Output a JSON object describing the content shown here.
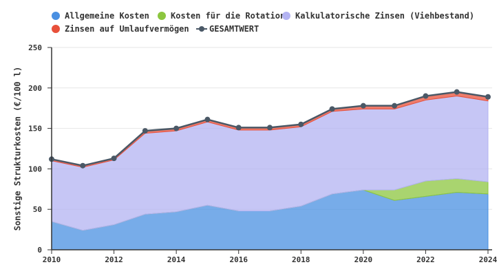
{
  "chart_data": {
    "type": "area",
    "stacked": true,
    "y_label": "Sonstige Strukturkosten (€/100 l)",
    "x": [
      2010,
      2011,
      2012,
      2013,
      2014,
      2015,
      2016,
      2017,
      2018,
      2019,
      2020,
      2021,
      2022,
      2023,
      2024
    ],
    "xlim": [
      2010,
      2024
    ],
    "xticks": [
      2010,
      2012,
      2014,
      2016,
      2018,
      2020,
      2022,
      2024
    ],
    "ylim": [
      0,
      250
    ],
    "yticks": [
      0,
      50,
      100,
      150,
      200,
      250
    ],
    "grid": true,
    "series": [
      {
        "name": "Allgemeine Kosten",
        "color": "#4a90e2",
        "values": [
          35,
          24,
          31,
          44,
          47,
          55,
          48,
          48,
          54,
          69,
          74,
          61,
          66,
          71,
          69
        ]
      },
      {
        "name": "Kosten für die Rotation",
        "color": "#8cc63f",
        "values": [
          0,
          0,
          0,
          0,
          0,
          0,
          0,
          0,
          0,
          0,
          0,
          13,
          19,
          17,
          15
        ]
      },
      {
        "name": "Kalkulatorische Zinsen (Viehbestand)",
        "color": "#b3b3f2",
        "values": [
          75,
          78,
          80,
          100,
          100,
          103,
          100,
          100,
          98,
          102,
          100,
          100,
          100,
          102,
          100
        ]
      },
      {
        "name": "Zinsen auf Umlaufvermögen",
        "color": "#e8503a",
        "values": [
          2,
          2,
          2,
          3,
          3,
          3,
          3,
          3,
          3,
          3,
          4,
          4,
          5,
          5,
          5
        ]
      },
      {
        "name": "GESAMTWERT",
        "color": "#4a5866",
        "type": "line",
        "values": [
          112,
          104,
          113,
          147,
          150,
          161,
          151,
          151,
          155,
          174,
          178,
          178,
          190,
          195,
          189
        ]
      }
    ]
  }
}
